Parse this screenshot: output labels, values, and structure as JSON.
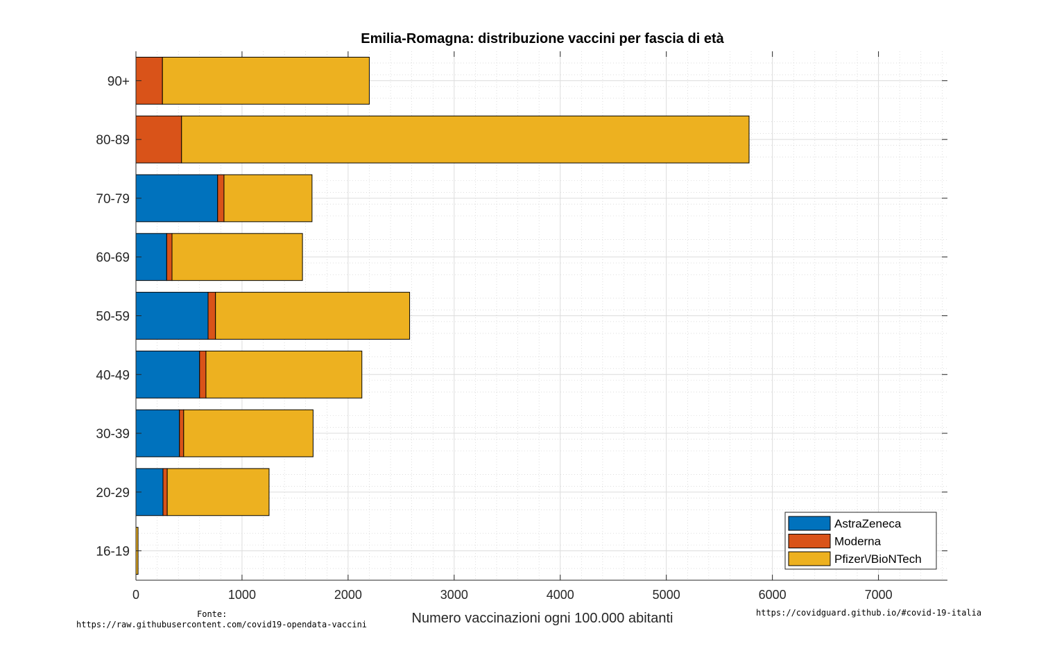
{
  "chart_data": {
    "type": "bar",
    "orientation": "horizontal",
    "stacked": true,
    "title": "Emilia-Romagna: distribuzione vaccini per fascia di età",
    "xlabel": "Numero vaccinazioni ogni 100.000 abitanti",
    "ylabel": "",
    "xlim": [
      0,
      7650
    ],
    "xticks": [
      0,
      1000,
      2000,
      3000,
      4000,
      5000,
      6000,
      7000
    ],
    "categories": [
      "16-19",
      "20-29",
      "30-39",
      "40-49",
      "50-59",
      "60-69",
      "70-79",
      "80-89",
      "90+"
    ],
    "series": [
      {
        "name": "AstraZeneca",
        "color": "#0072BD",
        "values": [
          0,
          255,
          410,
          600,
          680,
          290,
          770,
          0,
          0
        ]
      },
      {
        "name": "Moderna",
        "color": "#D95319",
        "values": [
          0,
          40,
          40,
          60,
          70,
          50,
          60,
          430,
          250
        ]
      },
      {
        "name": "Pfizer\\/BioNTech",
        "color": "#EDB120",
        "values": [
          20,
          960,
          1220,
          1470,
          1830,
          1230,
          830,
          5350,
          1950
        ]
      }
    ],
    "grid": true,
    "minor_grid": true,
    "legend_position": "bottom-right"
  },
  "source": {
    "fonte_label": "Fonte:",
    "fonte_url": "https://raw.githubusercontent.com/covid19-opendata-vaccini",
    "site_url": "https://covidguard.github.io/#covid-19-italia"
  }
}
